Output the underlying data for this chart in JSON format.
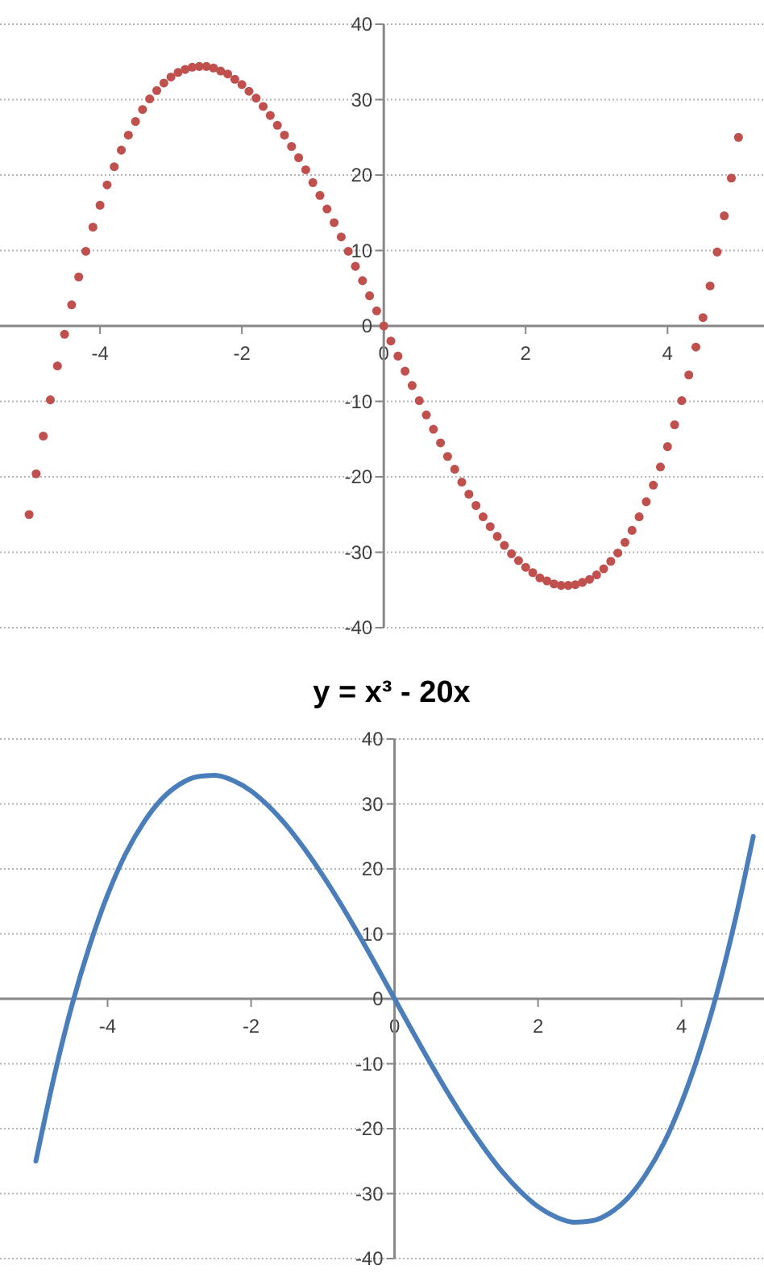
{
  "chart_data": [
    {
      "type": "scatter",
      "x": [
        -5,
        -4.9,
        -4.8,
        -4.7,
        -4.6,
        -4.5,
        -4.4,
        -4.3,
        -4.2,
        -4.1,
        -4,
        -3.9,
        -3.8,
        -3.7,
        -3.6,
        -3.5,
        -3.4,
        -3.3,
        -3.2,
        -3.1,
        -3,
        -2.9,
        -2.8,
        -2.7,
        -2.6,
        -2.5,
        -2.4,
        -2.3,
        -2.2,
        -2.1,
        -2,
        -1.9,
        -1.8,
        -1.7,
        -1.6,
        -1.5,
        -1.4,
        -1.3,
        -1.2,
        -1.1,
        -1,
        -0.9,
        -0.8,
        -0.7,
        -0.6,
        -0.5,
        -0.4,
        -0.3,
        -0.2,
        -0.1,
        0,
        0.1,
        0.2,
        0.3,
        0.4,
        0.5,
        0.6,
        0.7,
        0.8,
        0.9,
        1,
        1.1,
        1.2,
        1.3,
        1.4,
        1.5,
        1.6,
        1.7,
        1.8,
        1.9,
        2,
        2.1,
        2.2,
        2.3,
        2.4,
        2.5,
        2.6,
        2.7,
        2.8,
        2.9,
        3,
        3.1,
        3.2,
        3.3,
        3.4,
        3.5,
        3.6,
        3.7,
        3.8,
        3.9,
        4,
        4.1,
        4.2,
        4.3,
        4.4,
        4.5,
        4.6,
        4.7,
        4.8,
        4.9,
        5
      ],
      "series": [
        {
          "color": "#c0504d",
          "values": [
            -25,
            -19.6,
            -14.6,
            -9.8,
            -5.3,
            -1.1,
            2.8,
            6.5,
            9.9,
            13.1,
            16,
            18.7,
            21.1,
            23.3,
            25.3,
            27.1,
            28.7,
            30.1,
            31.2,
            32.2,
            33,
            33.6,
            34,
            34.3,
            34.4,
            34.4,
            34.2,
            33.8,
            33.4,
            32.7,
            32,
            31.1,
            30.2,
            29.1,
            27.9,
            26.6,
            25.3,
            23.8,
            22.3,
            20.7,
            19,
            17.3,
            15.5,
            13.7,
            11.8,
            9.9,
            7.9,
            6,
            4,
            2,
            0,
            -2,
            -4,
            -6,
            -7.9,
            -9.9,
            -11.8,
            -13.7,
            -15.5,
            -17.3,
            -19,
            -20.7,
            -22.3,
            -23.8,
            -25.3,
            -26.6,
            -27.9,
            -29.1,
            -30.2,
            -31.1,
            -32,
            -32.7,
            -33.4,
            -33.8,
            -34.2,
            -34.4,
            -34.4,
            -34.3,
            -34,
            -33.6,
            -33,
            -32.2,
            -31.2,
            -30.1,
            -28.7,
            -27.1,
            -25.3,
            -23.3,
            -21.1,
            -18.7,
            -16,
            -13.1,
            -9.9,
            -6.5,
            -2.8,
            1.1,
            5.3,
            9.8,
            14.6,
            19.6,
            25
          ]
        }
      ],
      "xlim": [
        -5.41,
        5.36
      ],
      "xticks": [
        -4,
        -2,
        0,
        2,
        4
      ],
      "ylim": [
        -40,
        40
      ],
      "yticks": [
        -40,
        -30,
        -20,
        -10,
        0,
        10,
        20,
        30,
        40
      ],
      "grid": "y",
      "marker": "circle"
    },
    {
      "type": "line",
      "title": "y = x³ - 20x",
      "x": [
        -5,
        -4.75,
        -4.5,
        -4.25,
        -4,
        -3.75,
        -3.5,
        -3.25,
        -3,
        -2.75,
        -2.5,
        -2.25,
        -2,
        -1.75,
        -1.5,
        -1.25,
        -1,
        -0.75,
        -0.5,
        -0.25,
        0,
        0.25,
        0.5,
        0.75,
        1,
        1.25,
        1.5,
        1.75,
        2,
        2.25,
        2.5,
        2.75,
        3,
        3.25,
        3.5,
        3.75,
        4,
        4.25,
        4.5,
        4.75,
        5
      ],
      "series": [
        {
          "color": "#4a7ebb",
          "values": [
            -25,
            -12.2,
            -1.1,
            8.2,
            16,
            22.3,
            27.1,
            30.7,
            33,
            34.2,
            34.4,
            33.6,
            32,
            29.6,
            26.6,
            23,
            19,
            14.6,
            9.9,
            5,
            0,
            -5,
            -9.9,
            -14.6,
            -19,
            -23,
            -26.6,
            -29.6,
            -32,
            -33.6,
            -34.4,
            -34.2,
            -33,
            -30.7,
            -27.1,
            -22.3,
            -16,
            -8.2,
            1.1,
            12.2,
            25
          ]
        }
      ],
      "xlim": [
        -5.5,
        5.15
      ],
      "xticks": [
        -4,
        -2,
        0,
        2,
        4
      ],
      "ylim": [
        -40,
        40
      ],
      "yticks": [
        -40,
        -30,
        -20,
        -10,
        0,
        10,
        20,
        30,
        40
      ],
      "grid": "y",
      "line_style": "solid"
    }
  ]
}
